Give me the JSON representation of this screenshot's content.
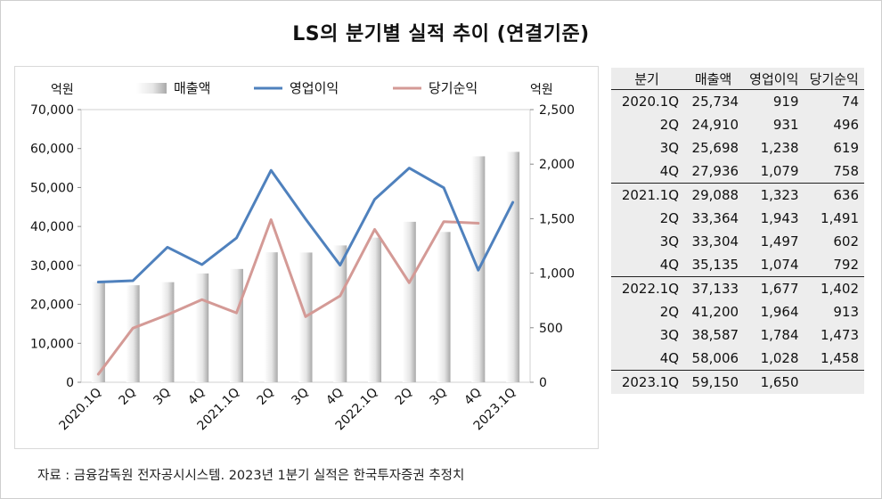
{
  "title": "LS의 분기별 실적 추이 (연결기준)",
  "source": "자료 : 금융감독원 전자공시시스템. 2023년 1분기 실적은 한국투자증권 추정치",
  "colors": {
    "line_op": "#4f81bd",
    "line_net": "#d49a96",
    "bar_light": "#ffffff",
    "bar_dark": "#b7b7b7"
  },
  "chart_data": {
    "type": "bar+line",
    "left_axis_label": "억원",
    "right_axis_label": "억원",
    "left_ylim": [
      0,
      70000
    ],
    "left_ticks": [
      "0",
      "10,000",
      "20,000",
      "30,000",
      "40,000",
      "50,000",
      "60,000",
      "70,000"
    ],
    "right_ylim": [
      0,
      2500
    ],
    "right_ticks": [
      "0",
      "500",
      "1,000",
      "1,500",
      "2,000",
      "2,500"
    ],
    "categories": [
      "2020.1Q",
      "2Q",
      "3Q",
      "4Q",
      "2021.1Q",
      "2Q",
      "3Q",
      "4Q",
      "2022.1Q",
      "2Q",
      "3Q",
      "4Q",
      "2023.1Q"
    ],
    "legend": "top",
    "series": [
      {
        "name": "매출액",
        "kind": "bar",
        "axis": "left",
        "values": [
          25734,
          24910,
          25698,
          27936,
          29088,
          33364,
          33304,
          35135,
          37133,
          41200,
          38587,
          58006,
          59150
        ]
      },
      {
        "name": "영업이익",
        "kind": "line",
        "axis": "right",
        "values": [
          919,
          931,
          1238,
          1079,
          1323,
          1943,
          1497,
          1074,
          1677,
          1964,
          1784,
          1028,
          1650
        ]
      },
      {
        "name": "당기순익",
        "kind": "line",
        "axis": "right",
        "values": [
          74,
          496,
          619,
          758,
          636,
          1491,
          602,
          792,
          1402,
          913,
          1473,
          1458,
          null
        ]
      }
    ]
  },
  "table": {
    "headers": [
      "분기",
      "매출액",
      "영업이익",
      "당기순익"
    ],
    "rows": [
      [
        "2020.1Q",
        "25,734",
        "919",
        "74"
      ],
      [
        "2Q",
        "24,910",
        "931",
        "496"
      ],
      [
        "3Q",
        "25,698",
        "1,238",
        "619"
      ],
      [
        "4Q",
        "27,936",
        "1,079",
        "758"
      ],
      [
        "2021.1Q",
        "29,088",
        "1,323",
        "636"
      ],
      [
        "2Q",
        "33,364",
        "1,943",
        "1,491"
      ],
      [
        "3Q",
        "33,304",
        "1,497",
        "602"
      ],
      [
        "4Q",
        "35,135",
        "1,074",
        "792"
      ],
      [
        "2022.1Q",
        "37,133",
        "1,677",
        "1,402"
      ],
      [
        "2Q",
        "41,200",
        "1,964",
        "913"
      ],
      [
        "3Q",
        "38,587",
        "1,784",
        "1,473"
      ],
      [
        "4Q",
        "58,006",
        "1,028",
        "1,458"
      ],
      [
        "2023.1Q",
        "59,150",
        "1,650",
        ""
      ]
    ]
  }
}
